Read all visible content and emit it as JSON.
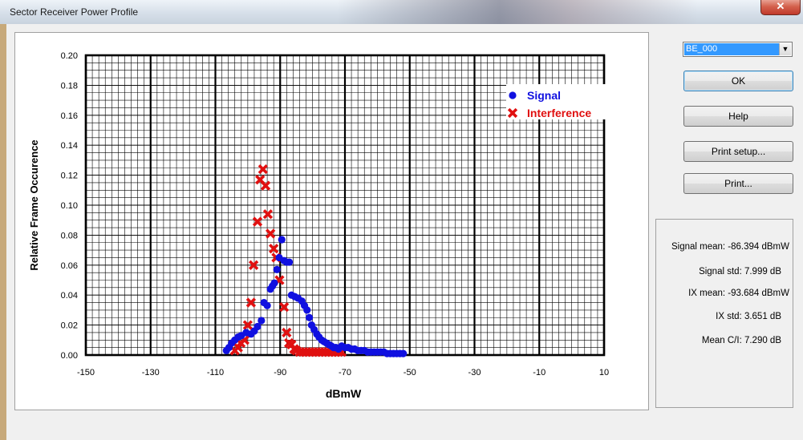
{
  "window": {
    "title": "Sector Receiver Power Profile",
    "close_glyph": "✕"
  },
  "sector_select": {
    "value": "BE_000",
    "arrow_glyph": "▼"
  },
  "buttons": {
    "ok": "OK",
    "help": "Help",
    "print_setup": "Print setup...",
    "print": "Print..."
  },
  "stats": {
    "signal_mean": "Signal mean: -86.394 dBmW",
    "signal_std": "Signal std:  7.999 dB",
    "ix_mean": "IX mean: -93.684 dBmW",
    "ix_std": "IX std:  3.651 dB",
    "mean_ci": "Mean C/I:  7.290 dB"
  },
  "chart_data": {
    "type": "scatter",
    "xlabel": "dBmW",
    "ylabel": "Relative Frame Occurence",
    "xlim": [
      -150,
      10
    ],
    "ylim": [
      0,
      0.2
    ],
    "x_ticks": [
      -150,
      -130,
      -110,
      -90,
      -70,
      -50,
      -30,
      -10,
      10
    ],
    "x_tick_labels": [
      "-150",
      "-130",
      "-110",
      "-90",
      "-70",
      "-50",
      "-30",
      "-10",
      "10"
    ],
    "y_ticks": [
      0,
      0.02,
      0.04,
      0.06,
      0.08,
      0.1,
      0.12,
      0.14,
      0.16,
      0.18,
      0.2
    ],
    "y_tick_labels": [
      "0.00",
      "0.02",
      "0.04",
      "0.06",
      "0.08",
      "0.10",
      "0.12",
      "0.14",
      "0.16",
      "0.18",
      "0.20"
    ],
    "grid": true,
    "legend_position": "top-right",
    "series": [
      {
        "name": "Signal",
        "color": "#1010e0",
        "marker": "circle",
        "points": [
          [
            -106.6,
            0.003
          ],
          [
            -105.8,
            0.005
          ],
          [
            -105,
            0.008
          ],
          [
            -104,
            0.01
          ],
          [
            -103,
            0.012
          ],
          [
            -102,
            0.013
          ],
          [
            -100.5,
            0.015
          ],
          [
            -99,
            0.014
          ],
          [
            -98,
            0.016
          ],
          [
            -97,
            0.019
          ],
          [
            -95.8,
            0.023
          ],
          [
            -95,
            0.035
          ],
          [
            -94,
            0.033
          ],
          [
            -93,
            0.044
          ],
          [
            -92.4,
            0.046
          ],
          [
            -91.8,
            0.048
          ],
          [
            -91,
            0.057
          ],
          [
            -90.3,
            0.065
          ],
          [
            -89.5,
            0.077
          ],
          [
            -88.8,
            0.063
          ],
          [
            -88,
            0.062
          ],
          [
            -87.2,
            0.062
          ],
          [
            -86.5,
            0.04
          ],
          [
            -85.5,
            0.039
          ],
          [
            -84.5,
            0.038
          ],
          [
            -83.3,
            0.036
          ],
          [
            -82.5,
            0.033
          ],
          [
            -81.7,
            0.03
          ],
          [
            -81,
            0.025
          ],
          [
            -80.3,
            0.02
          ],
          [
            -79.5,
            0.017
          ],
          [
            -78.7,
            0.014
          ],
          [
            -78,
            0.012
          ],
          [
            -77.2,
            0.01
          ],
          [
            -76.5,
            0.009
          ],
          [
            -75.7,
            0.008
          ],
          [
            -75,
            0.007
          ],
          [
            -74.2,
            0.006
          ],
          [
            -73.5,
            0.005
          ],
          [
            -72.8,
            0.005
          ],
          [
            -72,
            0.004
          ],
          [
            -71,
            0.006
          ],
          [
            -70,
            0.005
          ],
          [
            -69,
            0.005
          ],
          [
            -68,
            0.004
          ],
          [
            -67,
            0.004
          ],
          [
            -66,
            0.003
          ],
          [
            -65,
            0.003
          ],
          [
            -64,
            0.003
          ],
          [
            -63,
            0.002
          ],
          [
            -62,
            0.002
          ],
          [
            -61,
            0.002
          ],
          [
            -60,
            0.002
          ],
          [
            -59,
            0.002
          ],
          [
            -58,
            0.002
          ],
          [
            -57,
            0.001
          ],
          [
            -56,
            0.001
          ],
          [
            -55,
            0.001
          ],
          [
            -54,
            0.001
          ],
          [
            -53,
            0.001
          ],
          [
            -52,
            0.001
          ]
        ]
      },
      {
        "name": "Interference",
        "color": "#e01010",
        "marker": "x",
        "points": [
          [
            -104,
            0.003
          ],
          [
            -103,
            0.005
          ],
          [
            -102.2,
            0.008
          ],
          [
            -101,
            0.01
          ],
          [
            -100,
            0.02
          ],
          [
            -99,
            0.035
          ],
          [
            -98.2,
            0.06
          ],
          [
            -97,
            0.089
          ],
          [
            -96.2,
            0.117
          ],
          [
            -95.3,
            0.124
          ],
          [
            -94.5,
            0.113
          ],
          [
            -93.8,
            0.094
          ],
          [
            -93,
            0.081
          ],
          [
            -92,
            0.071
          ],
          [
            -91.2,
            0.065
          ],
          [
            -90.2,
            0.05
          ],
          [
            -88.8,
            0.032
          ],
          [
            -88,
            0.015
          ],
          [
            -87.3,
            0.008
          ],
          [
            -86.5,
            0.007
          ],
          [
            -85.7,
            0.004
          ],
          [
            -85,
            0.003
          ],
          [
            -84,
            0.002
          ],
          [
            -83,
            0.002
          ],
          [
            -82,
            0.002
          ],
          [
            -81,
            0.002
          ],
          [
            -80,
            0.002
          ],
          [
            -79,
            0.002
          ],
          [
            -78,
            0.002
          ],
          [
            -77,
            0.002
          ],
          [
            -76,
            0.002
          ],
          [
            -75,
            0.002
          ],
          [
            -74,
            0.002
          ],
          [
            -73,
            0.002
          ],
          [
            -72,
            0.002
          ],
          [
            -71,
            0.002
          ]
        ]
      }
    ]
  }
}
